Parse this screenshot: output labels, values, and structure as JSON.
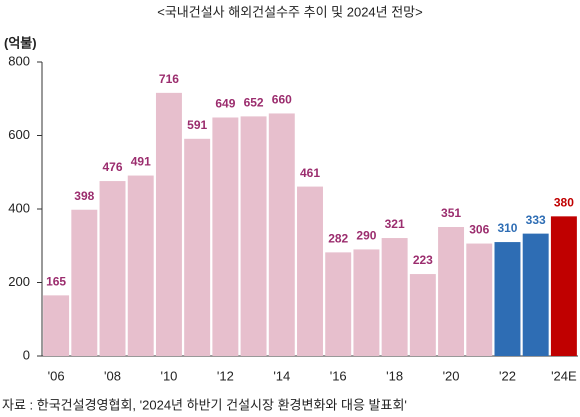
{
  "chart_data": {
    "type": "bar",
    "title": "<국내건설사 해외건설수주 추이 및 2024년 전망>",
    "y_label": "(억불)",
    "source": "자료 : 한국건설경영협회, '2024년 하반기 건설시장 환경변화와 대응 발표회'",
    "categories": [
      "'06",
      null,
      "'08",
      null,
      "'10",
      null,
      "'12",
      null,
      "'14",
      null,
      "'16",
      null,
      "'18",
      null,
      "'20",
      null,
      "'22",
      null,
      "'24E"
    ],
    "values": [
      165,
      398,
      476,
      491,
      716,
      591,
      649,
      652,
      660,
      461,
      282,
      290,
      321,
      223,
      351,
      306,
      310,
      333,
      380
    ],
    "colors": [
      "#e7bfcd",
      "#e7bfcd",
      "#e7bfcd",
      "#e7bfcd",
      "#e7bfcd",
      "#e7bfcd",
      "#e7bfcd",
      "#e7bfcd",
      "#e7bfcd",
      "#e7bfcd",
      "#e7bfcd",
      "#e7bfcd",
      "#e7bfcd",
      "#e7bfcd",
      "#e7bfcd",
      "#e7bfcd",
      "#2e6db4",
      "#2e6db4",
      "#c00000"
    ],
    "label_colors": [
      "#9b2d6e",
      "#9b2d6e",
      "#9b2d6e",
      "#9b2d6e",
      "#9b2d6e",
      "#9b2d6e",
      "#9b2d6e",
      "#9b2d6e",
      "#9b2d6e",
      "#9b2d6e",
      "#9b2d6e",
      "#9b2d6e",
      "#9b2d6e",
      "#9b2d6e",
      "#9b2d6e",
      "#9b2d6e",
      "#2e6db4",
      "#2e6db4",
      "#c00000"
    ],
    "ylim": [
      0,
      800
    ],
    "yticks": [
      0,
      200,
      400,
      600,
      800
    ],
    "grid": false
  }
}
